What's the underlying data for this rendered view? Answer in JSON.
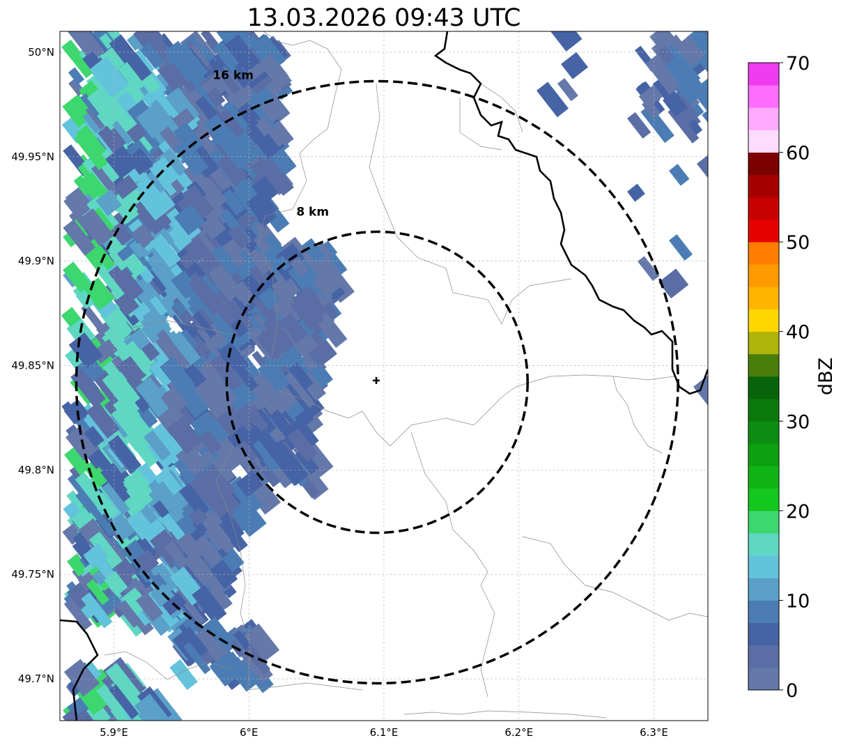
{
  "title": "13.03.2026 09:43 UTC",
  "map": {
    "extent": {
      "lon_min": 5.86,
      "lon_max": 6.34,
      "lat_min": 49.68,
      "lat_max": 50.01
    },
    "lon_ticks": [
      {
        "value": 5.9,
        "label": "5.9°E"
      },
      {
        "value": 6.0,
        "label": "6°E"
      },
      {
        "value": 6.1,
        "label": "6.1°E"
      },
      {
        "value": 6.2,
        "label": "6.2°E"
      },
      {
        "value": 6.3,
        "label": "6.3°E"
      }
    ],
    "lat_ticks": [
      {
        "value": 50.0,
        "label": "50°N"
      },
      {
        "value": 49.95,
        "label": "49.95°N"
      },
      {
        "value": 49.9,
        "label": "49.9°N"
      },
      {
        "value": 49.85,
        "label": "49.85°N"
      },
      {
        "value": 49.8,
        "label": "49.8°N"
      },
      {
        "value": 49.75,
        "label": "49.75°N"
      },
      {
        "value": 49.7,
        "label": "49.7°N"
      }
    ],
    "gridlines": true,
    "radar_site": {
      "lon": 6.095,
      "lat": 49.842
    },
    "range_rings": [
      {
        "radius_km": 8,
        "label": "8 km"
      },
      {
        "radius_km": 16,
        "label": "16 km"
      }
    ]
  },
  "colorbar": {
    "label": "dBZ",
    "min": 0,
    "max": 70,
    "step": 2.5,
    "tick_labels": [
      "0",
      "10",
      "20",
      "30",
      "40",
      "50",
      "60",
      "70"
    ],
    "colors": [
      "#6478aa",
      "#5a6ea5",
      "#4664a5",
      "#4b7db4",
      "#5aa0c8",
      "#64c3dc",
      "#5fd7c3",
      "#3cd76e",
      "#14c81e",
      "#10b414",
      "#0fa012",
      "#0c8c10",
      "#0a780c",
      "#08640a",
      "#4b7d0a",
      "#afb40a",
      "#ffd700",
      "#ffb400",
      "#ff9b00",
      "#ff7d00",
      "#e60000",
      "#c80000",
      "#a50000",
      "#7d0000",
      "#ffdcff",
      "#ffaaff",
      "#ff6eff",
      "#f03cf0"
    ]
  }
}
